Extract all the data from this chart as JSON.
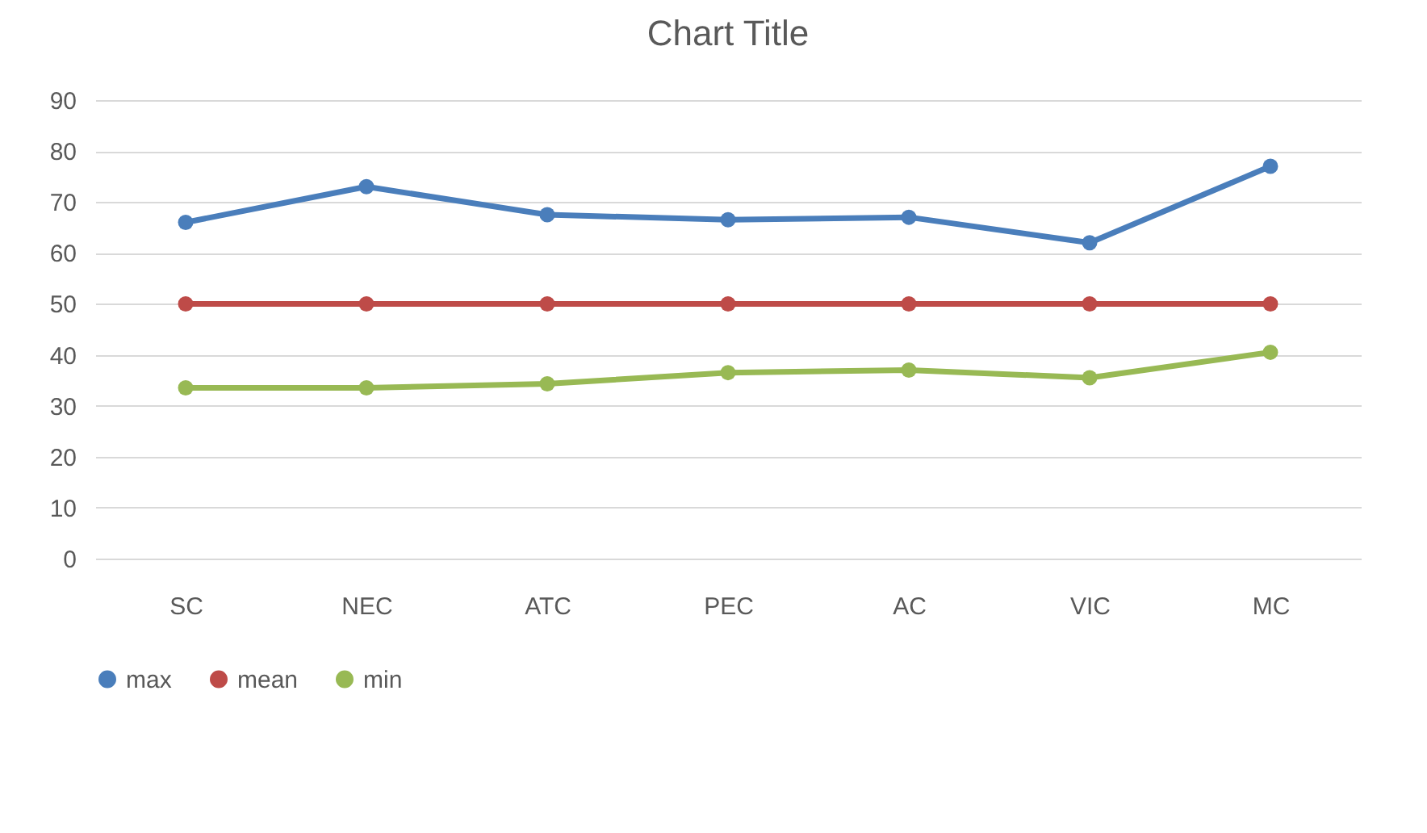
{
  "chart_data": {
    "type": "line",
    "title": "Chart Title",
    "categories": [
      "SC",
      "NEC",
      "ATC",
      "PEC",
      "AC",
      "VIC",
      "MC"
    ],
    "series": [
      {
        "name": "max",
        "color": "#4a7ebb",
        "values": [
          66,
          73,
          67.5,
          66.5,
          67,
          62,
          77
        ]
      },
      {
        "name": "mean",
        "color": "#be4b48",
        "values": [
          50,
          50,
          50,
          50,
          50,
          50,
          50
        ]
      },
      {
        "name": "min",
        "color": "#98b954",
        "values": [
          33.5,
          33.5,
          34.3,
          36.5,
          37,
          35.5,
          40.5
        ]
      }
    ],
    "ylim": [
      0,
      90
    ],
    "yticks": [
      0,
      10,
      20,
      30,
      40,
      50,
      60,
      70,
      80,
      90
    ],
    "grid": "y",
    "legend": "bottom",
    "marker": "circle",
    "line_style": "solid"
  }
}
